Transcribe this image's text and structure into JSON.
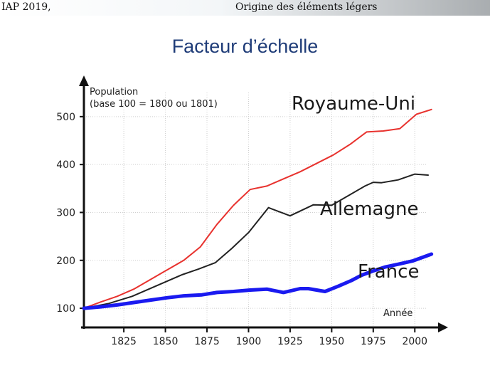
{
  "header": {
    "left": "IAP 2019,",
    "right": "Origine des éléments légers"
  },
  "slide_title": "Facteur d’échelle",
  "chart_data": {
    "type": "line",
    "ylabel_line1": "Population",
    "ylabel_line2": "(base 100 = 1800 ou 1801)",
    "xlabel": "Année",
    "xlim": [
      1801,
      2011
    ],
    "ylim": [
      60,
      580
    ],
    "x_ticks": [
      1825,
      1850,
      1875,
      1900,
      1925,
      1950,
      1975,
      2000
    ],
    "y_ticks": [
      100,
      200,
      300,
      400,
      500
    ],
    "grid": true,
    "series": [
      {
        "name": "Royaume-Uni",
        "color": "#e8322e",
        "x": [
          1801,
          1811,
          1821,
          1831,
          1841,
          1851,
          1861,
          1871,
          1881,
          1891,
          1901,
          1911,
          1921,
          1931,
          1951,
          1961,
          1971,
          1981,
          1991,
          2001,
          2010
        ],
        "values": [
          100,
          113,
          125,
          140,
          160,
          180,
          200,
          228,
          275,
          315,
          348,
          355,
          370,
          385,
          420,
          442,
          468,
          470,
          475,
          505,
          515
        ]
      },
      {
        "name": "Allemagne",
        "color": "#222222",
        "x": [
          1801,
          1816,
          1830,
          1840,
          1850,
          1860,
          1870,
          1880,
          1890,
          1900,
          1912,
          1925,
          1939,
          1950,
          1960,
          1970,
          1975,
          1980,
          1990,
          2000,
          2008
        ],
        "values": [
          100,
          110,
          125,
          140,
          155,
          170,
          182,
          195,
          225,
          258,
          310,
          293,
          316,
          315,
          335,
          355,
          363,
          362,
          368,
          380,
          378
        ]
      },
      {
        "name": "France",
        "color": "#1a1af0",
        "x": [
          1801,
          1811,
          1821,
          1831,
          1841,
          1851,
          1861,
          1872,
          1881,
          1891,
          1901,
          1911,
          1921,
          1931,
          1936,
          1946,
          1954,
          1962,
          1968,
          1975,
          1982,
          1990,
          1999,
          2010
        ],
        "values": [
          100,
          103,
          107,
          112,
          117,
          122,
          126,
          128,
          133,
          135,
          138,
          140,
          133,
          141,
          141,
          135,
          146,
          158,
          169,
          178,
          186,
          192,
          199,
          213
        ]
      }
    ]
  }
}
